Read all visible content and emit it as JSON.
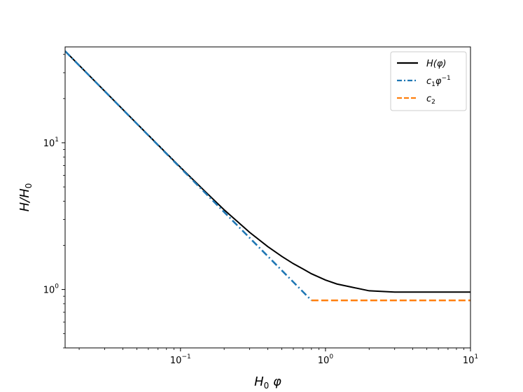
{
  "chart_data": {
    "type": "line",
    "title": "",
    "xlabel": {
      "base": "H",
      "sub": "0",
      "tail": " φ"
    },
    "ylabel": {
      "base": "H/H",
      "sub": "0"
    },
    "xscale": "log",
    "yscale": "log",
    "xlim": [
      0.016,
      10
    ],
    "ylim": [
      0.4,
      45
    ],
    "grid": false,
    "legend_position": "top-right",
    "x_ticks": [
      {
        "value": 0.1,
        "mantissa": "10",
        "exp": "−1"
      },
      {
        "value": 1,
        "mantissa": "10",
        "exp": "0"
      },
      {
        "value": 10,
        "mantissa": "10",
        "exp": "1"
      }
    ],
    "y_ticks": [
      {
        "value": 1,
        "mantissa": "10",
        "exp": "0"
      },
      {
        "value": 10,
        "mantissa": "10",
        "exp": "1"
      }
    ],
    "series": [
      {
        "legend": {
          "base": "H(φ)",
          "sub": "",
          "sup": ""
        },
        "color": "#000000",
        "style": "solid",
        "x": [
          0.016,
          0.02,
          0.03,
          0.05,
          0.07,
          0.1,
          0.15,
          0.2,
          0.3,
          0.4,
          0.5,
          0.6,
          0.7,
          0.8,
          1.0,
          1.2,
          1.5,
          2.0,
          3.0,
          5.0,
          7.0,
          10.0
        ],
        "y": [
          42.13,
          33.71,
          22.48,
          13.51,
          9.67,
          6.8,
          4.59,
          3.49,
          2.45,
          1.96,
          1.68,
          1.5,
          1.38,
          1.28,
          1.16,
          1.09,
          1.04,
          0.98,
          0.96,
          0.96,
          0.96,
          0.96
        ]
      },
      {
        "legend": {
          "base": "c",
          "sub": "1",
          "mid": "φ",
          "sup": "−1"
        },
        "color": "#1f77b4",
        "style": "dashdot",
        "x": [
          0.016,
          0.8
        ],
        "y": [
          42.1,
          0.843
        ]
      },
      {
        "legend": {
          "base": "c",
          "sub": "2",
          "sup": ""
        },
        "color": "#ff7f0e",
        "style": "dashed",
        "x": [
          0.8,
          10
        ],
        "y": [
          0.843,
          0.843
        ]
      }
    ]
  }
}
